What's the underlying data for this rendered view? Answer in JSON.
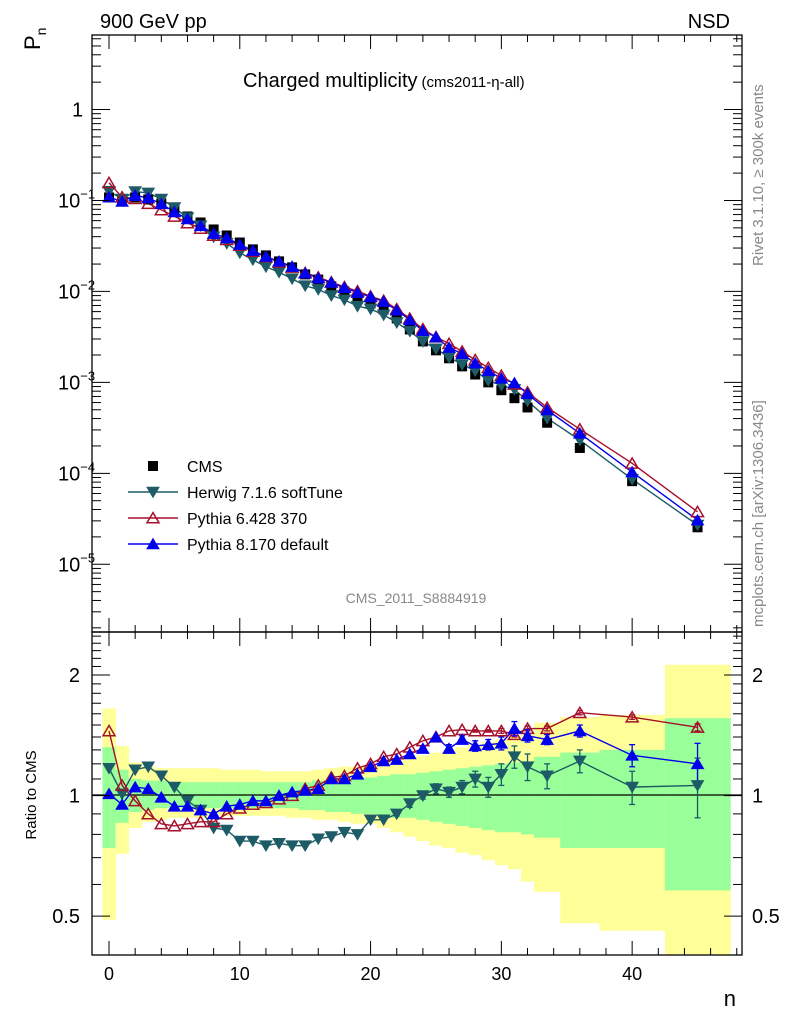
{
  "header": {
    "energy_label": "900 GeV pp",
    "process_label": "NSD",
    "title": "Charged multiplicity",
    "subtitle": "(cms2011-η-all)",
    "side_label_top": "Rivet 3.1.10, ≥ 300k events",
    "side_label_bottom": "mcplots.cern.ch [arXiv:1306.3436]",
    "watermark": "CMS_2011_S8884919"
  },
  "chart_data": {
    "type": "scatter",
    "title": "Charged multiplicity",
    "xlabel": "n",
    "ylabel": "P_n",
    "ratio_ylabel": "Ratio to CMS",
    "xlim": [
      -1.3,
      48.4
    ],
    "ylim": [
      1.8e-06,
      6.6
    ],
    "yscale": "log",
    "ratio_ylim": [
      0.4,
      2.56
    ],
    "ratio_yscale": "log",
    "x_ticks": [
      "0",
      "10",
      "20",
      "30",
      "40"
    ],
    "y_ticks": [
      {
        "value": 1,
        "label": "1",
        "sup": ""
      },
      {
        "value": 0.1,
        "label": "10",
        "sup": "−1"
      },
      {
        "value": 0.01,
        "label": "10",
        "sup": "−2"
      },
      {
        "value": 0.001,
        "label": "10",
        "sup": "−3"
      },
      {
        "value": 0.0001,
        "label": "10",
        "sup": "−4"
      },
      {
        "value": 1e-05,
        "label": "10",
        "sup": "−5"
      }
    ],
    "ratio_ticks": [
      {
        "value": 2,
        "label": "2"
      },
      {
        "value": 1,
        "label": "1"
      },
      {
        "value": 0.5,
        "label": "0.5"
      }
    ],
    "x": [
      0,
      1,
      2,
      3,
      4,
      5,
      6,
      7,
      8,
      9,
      10,
      11,
      12,
      13,
      14,
      15,
      16,
      17,
      18,
      19,
      20,
      21,
      22,
      23,
      24,
      25,
      26,
      27,
      28,
      29,
      30,
      31,
      32,
      33.5,
      36,
      40,
      45
    ],
    "bin_edges": [
      [
        -0.5,
        0.5
      ],
      [
        0.5,
        1.5
      ],
      [
        1.5,
        2.5
      ],
      [
        2.5,
        3.5
      ],
      [
        3.5,
        4.5
      ],
      [
        4.5,
        5.5
      ],
      [
        5.5,
        6.5
      ],
      [
        6.5,
        7.5
      ],
      [
        7.5,
        8.5
      ],
      [
        8.5,
        9.5
      ],
      [
        9.5,
        10.5
      ],
      [
        10.5,
        11.5
      ],
      [
        11.5,
        12.5
      ],
      [
        12.5,
        13.5
      ],
      [
        13.5,
        14.5
      ],
      [
        14.5,
        15.5
      ],
      [
        15.5,
        16.5
      ],
      [
        16.5,
        17.5
      ],
      [
        17.5,
        18.5
      ],
      [
        18.5,
        19.5
      ],
      [
        19.5,
        20.5
      ],
      [
        20.5,
        21.5
      ],
      [
        21.5,
        22.5
      ],
      [
        22.5,
        23.5
      ],
      [
        23.5,
        24.5
      ],
      [
        24.5,
        25.5
      ],
      [
        25.5,
        26.5
      ],
      [
        26.5,
        27.5
      ],
      [
        27.5,
        28.5
      ],
      [
        28.5,
        29.5
      ],
      [
        29.5,
        30.5
      ],
      [
        30.5,
        31.5
      ],
      [
        31.5,
        32.5
      ],
      [
        32.5,
        34.5
      ],
      [
        34.5,
        37.5
      ],
      [
        37.5,
        42.5
      ],
      [
        42.5,
        47.5
      ]
    ],
    "reference": {
      "name": "CMS",
      "color": "#000000",
      "values": [
        0.108,
        0.1026,
        0.108,
        0.1026,
        0.0927,
        0.0796,
        0.0667,
        0.0573,
        0.048,
        0.0412,
        0.0345,
        0.029,
        0.0249,
        0.0214,
        0.0184,
        0.0154,
        0.0135,
        0.0114,
        0.01,
        0.0086,
        0.00738,
        0.00634,
        0.00505,
        0.00382,
        0.00282,
        0.00225,
        0.00184,
        0.0015,
        0.00122,
        0.001,
        0.00082,
        0.00067,
        0.00053,
        0.00036,
        0.00019,
        8.2e-05,
        2.55e-05
      ],
      "band_inner_color": "#99ff99",
      "band_outer_color": "#ffff99",
      "band_inner_hi": [
        1.32,
        1.16,
        1.1,
        1.09,
        1.09,
        1.08,
        1.08,
        1.08,
        1.08,
        1.08,
        1.08,
        1.08,
        1.08,
        1.08,
        1.08,
        1.08,
        1.09,
        1.09,
        1.1,
        1.1,
        1.11,
        1.12,
        1.13,
        1.13,
        1.14,
        1.15,
        1.16,
        1.17,
        1.18,
        1.19,
        1.2,
        1.21,
        1.22,
        1.25,
        1.28,
        1.3,
        1.56
      ],
      "band_inner_lo": [
        0.74,
        0.855,
        0.91,
        0.92,
        0.93,
        0.93,
        0.93,
        0.93,
        0.93,
        0.93,
        0.93,
        0.93,
        0.93,
        0.93,
        0.93,
        0.92,
        0.92,
        0.91,
        0.91,
        0.9,
        0.9,
        0.89,
        0.88,
        0.88,
        0.87,
        0.86,
        0.85,
        0.84,
        0.83,
        0.82,
        0.81,
        0.81,
        0.8,
        0.785,
        0.74,
        0.74,
        0.58
      ],
      "band_outer_hi": [
        1.65,
        1.33,
        1.21,
        1.18,
        1.17,
        1.17,
        1.17,
        1.17,
        1.17,
        1.16,
        1.16,
        1.16,
        1.15,
        1.15,
        1.15,
        1.15,
        1.16,
        1.17,
        1.18,
        1.18,
        1.19,
        1.2,
        1.22,
        1.24,
        1.26,
        1.28,
        1.3,
        1.32,
        1.34,
        1.36,
        1.38,
        1.4,
        1.42,
        1.52,
        1.57,
        1.59,
        2.12
      ],
      "band_outer_lo": [
        0.49,
        0.715,
        0.83,
        0.86,
        0.87,
        0.88,
        0.88,
        0.88,
        0.89,
        0.89,
        0.89,
        0.89,
        0.89,
        0.89,
        0.88,
        0.88,
        0.87,
        0.87,
        0.86,
        0.85,
        0.85,
        0.83,
        0.81,
        0.79,
        0.77,
        0.75,
        0.74,
        0.72,
        0.71,
        0.69,
        0.67,
        0.655,
        0.61,
        0.575,
        0.48,
        0.46,
        0.3
      ]
    },
    "series": [
      {
        "name": "Herwig 7.1.6 softTune",
        "color": "#1d5c66",
        "marker": "triangle-down-filled",
        "ratio_to_cms": [
          1.17,
          1.01,
          1.16,
          1.18,
          1.12,
          1.05,
          0.97,
          0.92,
          0.83,
          0.82,
          0.77,
          0.77,
          0.75,
          0.76,
          0.75,
          0.75,
          0.78,
          0.79,
          0.81,
          0.8,
          0.87,
          0.87,
          0.9,
          0.955,
          1.0,
          1.04,
          1.02,
          1.05,
          1.1,
          1.05,
          1.13,
          1.25,
          1.18,
          1.12,
          1.22,
          1.05,
          1.06
        ],
        "ratio_err": [
          0,
          0,
          0,
          0,
          0,
          0,
          0,
          0,
          0,
          0,
          0,
          0,
          0,
          0,
          0,
          0,
          0,
          0,
          0,
          0,
          0,
          0,
          0.01,
          0.02,
          0.02,
          0.03,
          0.03,
          0.04,
          0.05,
          0.06,
          0.07,
          0.08,
          0.09,
          0.08,
          0.08,
          0.1,
          0.18
        ]
      },
      {
        "name": "Pythia 6.428 370",
        "color": "#a5102b",
        "marker": "triangle-up-open",
        "ratio_to_cms": [
          1.45,
          1.06,
          0.97,
          0.9,
          0.85,
          0.84,
          0.85,
          0.86,
          0.86,
          0.9,
          0.93,
          0.95,
          0.96,
          0.98,
          1.0,
          1.04,
          1.06,
          1.11,
          1.12,
          1.17,
          1.2,
          1.25,
          1.27,
          1.32,
          1.37,
          1.4,
          1.45,
          1.46,
          1.45,
          1.45,
          1.45,
          1.42,
          1.47,
          1.47,
          1.61,
          1.57,
          1.48
        ],
        "ratio_err": [
          0,
          0,
          0,
          0,
          0,
          0,
          0,
          0,
          0,
          0,
          0,
          0,
          0,
          0,
          0,
          0,
          0,
          0,
          0,
          0,
          0,
          0,
          0,
          0,
          0,
          0,
          0,
          0,
          0.01,
          0.01,
          0.02,
          0.02,
          0.02,
          0.02,
          0.02,
          0.02,
          0.03
        ]
      },
      {
        "name": "Pythia 8.170 default",
        "color": "#0000ee",
        "marker": "triangle-up-filled",
        "ratio_to_cms": [
          1.01,
          0.95,
          1.05,
          1.04,
          0.99,
          0.94,
          0.94,
          0.92,
          0.9,
          0.94,
          0.95,
          0.97,
          0.97,
          1.0,
          1.02,
          1.03,
          1.04,
          1.1,
          1.1,
          1.13,
          1.18,
          1.22,
          1.23,
          1.27,
          1.31,
          1.4,
          1.31,
          1.38,
          1.33,
          1.34,
          1.35,
          1.47,
          1.41,
          1.38,
          1.45,
          1.26,
          1.2
        ],
        "ratio_err": [
          0,
          0,
          0,
          0,
          0,
          0,
          0,
          0,
          0,
          0,
          0,
          0,
          0,
          0,
          0,
          0,
          0,
          0,
          0,
          0,
          0,
          0,
          0,
          0,
          0.01,
          0.01,
          0.03,
          0.03,
          0.04,
          0.04,
          0.05,
          0.06,
          0.05,
          0.04,
          0.05,
          0.08,
          0.15
        ]
      }
    ],
    "legend": {
      "placement": "lower-left",
      "entries": [
        "CMS",
        "Herwig 7.1.6 softTune",
        "Pythia 6.428 370",
        "Pythia 8.170 default"
      ]
    }
  }
}
